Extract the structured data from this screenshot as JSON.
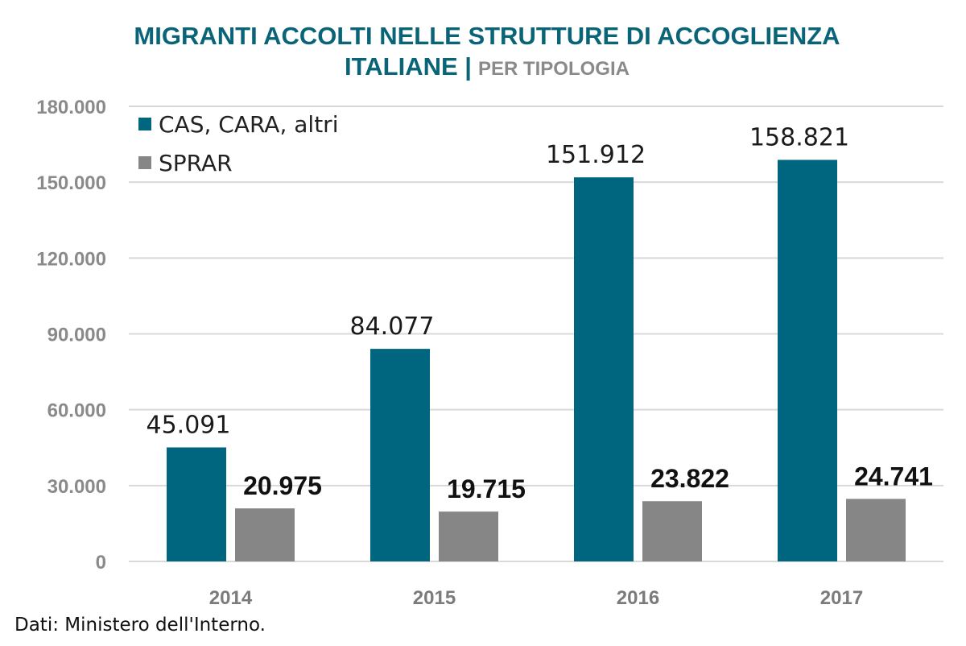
{
  "chart_data": {
    "type": "bar",
    "title_line1": "MIGRANTI ACCOLTI NELLE STRUTTURE DI ACCOGLIENZA",
    "title_line2": "ITALIANE |",
    "subtitle": "PER TIPOLOGIA",
    "categories": [
      "2014",
      "2015",
      "2016",
      "2017"
    ],
    "series": [
      {
        "name": "CAS, CARA, altri",
        "color": "#006680",
        "values": [
          45091,
          84077,
          151912,
          158821
        ],
        "labels": [
          "45.091",
          "84.077",
          "151.912",
          "158.821"
        ]
      },
      {
        "name": "SPRAR",
        "color": "#868686",
        "values": [
          20975,
          19715,
          23822,
          24741
        ],
        "labels": [
          "20.975",
          "19.715",
          "23.822",
          "24.741"
        ]
      }
    ],
    "ylim": [
      0,
      180000
    ],
    "yticks": [
      {
        "value": 0,
        "label": "0"
      },
      {
        "value": 30000,
        "label": "30.000"
      },
      {
        "value": 60000,
        "label": "60.000"
      },
      {
        "value": 90000,
        "label": "90.000"
      },
      {
        "value": 120000,
        "label": "120.000"
      },
      {
        "value": 150000,
        "label": "150.000"
      },
      {
        "value": 180000,
        "label": "180.000"
      }
    ],
    "grid": true,
    "legend_position": "top-left",
    "title_color": "#0a6478",
    "subtitle_color": "#8a8a8a",
    "grid_color": "#d9d9d9",
    "source": "Dati: Ministero dell'Interno."
  }
}
